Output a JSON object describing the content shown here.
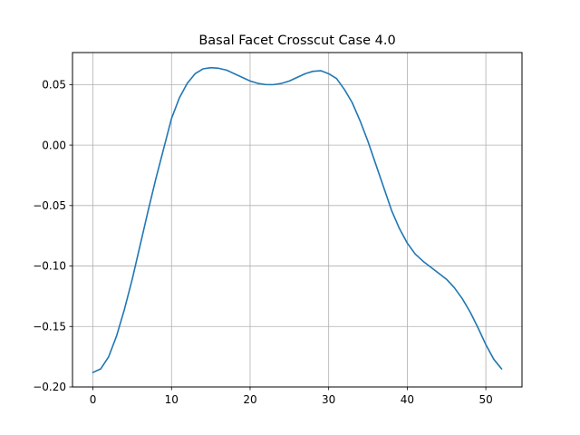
{
  "chart_data": {
    "type": "line",
    "title": "Basal Facet Crosscut Case 4.0",
    "xlabel": "",
    "ylabel": "",
    "xlim": [
      -2.6,
      54.6
    ],
    "ylim": [
      -0.2,
      0.0765
    ],
    "grid": true,
    "line_color": "#1f77b4",
    "grid_color": "#b0b0b0",
    "x_ticks": [
      0,
      10,
      20,
      30,
      40,
      50
    ],
    "x_tick_labels": [
      "0",
      "10",
      "20",
      "30",
      "40",
      "50"
    ],
    "y_ticks": [
      -0.2,
      -0.15,
      -0.1,
      -0.05,
      0.0,
      0.05
    ],
    "y_tick_labels": [
      "−0.20",
      "−0.15",
      "−0.10",
      "−0.05",
      "0.00",
      "0.05"
    ],
    "series": [
      {
        "x": [
          0,
          1,
          2,
          3,
          4,
          5,
          6,
          7,
          8,
          9,
          10,
          11,
          12,
          13,
          14,
          15,
          16,
          17,
          18,
          19,
          20,
          21,
          22,
          23,
          24,
          25,
          26,
          27,
          28,
          29,
          30,
          31,
          32,
          33,
          34,
          35,
          36,
          37,
          38,
          39,
          40,
          41,
          42,
          43,
          44,
          45,
          46,
          47,
          48,
          49,
          50,
          51,
          52
        ],
        "y": [
          -0.188,
          -0.185,
          -0.175,
          -0.158,
          -0.136,
          -0.111,
          -0.083,
          -0.055,
          -0.028,
          -0.003,
          0.022,
          0.039,
          0.051,
          0.059,
          0.063,
          0.064,
          0.0635,
          0.062,
          0.059,
          0.056,
          0.053,
          0.051,
          0.05,
          0.05,
          0.051,
          0.053,
          0.056,
          0.059,
          0.061,
          0.0615,
          0.059,
          0.055,
          0.046,
          0.035,
          0.02,
          0.003,
          -0.016,
          -0.035,
          -0.054,
          -0.069,
          -0.081,
          -0.09,
          -0.096,
          -0.101,
          -0.106,
          -0.111,
          -0.118,
          -0.127,
          -0.138,
          -0.151,
          -0.165,
          -0.177,
          -0.185
        ]
      }
    ]
  }
}
